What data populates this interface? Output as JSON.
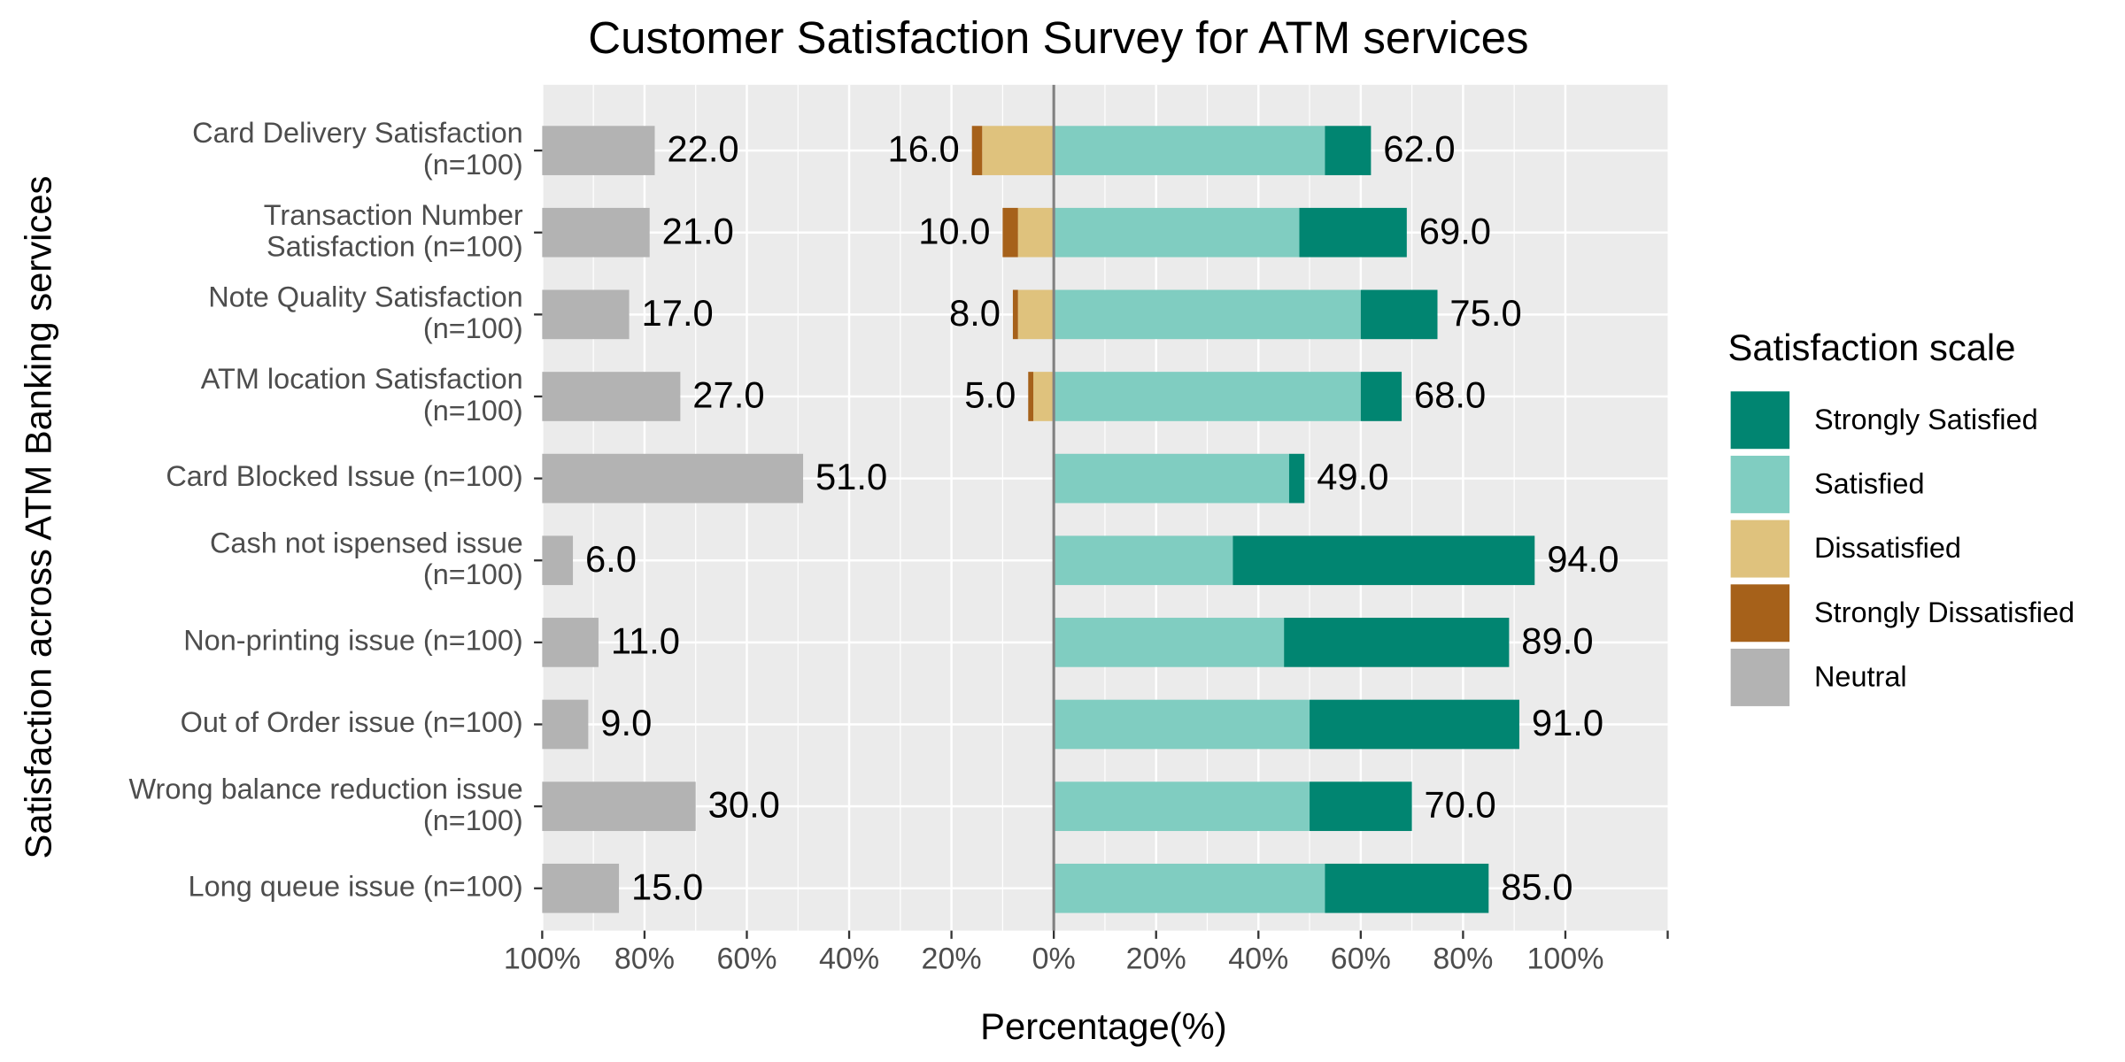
{
  "chart_data": {
    "type": "diverging_bar",
    "title": "Customer Satisfaction Survey for ATM services",
    "x_label": "Percentage(%)",
    "y_label": "Satisfaction across ATM Banking services",
    "legend_title": "Satisfaction scale",
    "categories": [
      "Card Delivery Satisfaction\n(n=100)",
      "Transaction Number\nSatisfaction (n=100)",
      "Note Quality Satisfaction\n(n=100)",
      "ATM location Satisfaction\n(n=100)",
      "Card Blocked Issue (n=100)",
      "Cash not ispensed issue\n(n=100)",
      "Non-printing issue (n=100)",
      "Out of Order issue (n=100)",
      "Wrong balance reduction issue\n(n=100)",
      "Long queue issue (n=100)"
    ],
    "series": [
      {
        "name": "Strongly Satisfied",
        "color": "#018571",
        "values": [
          9,
          21,
          15,
          8,
          3,
          59,
          44,
          41,
          20,
          32
        ]
      },
      {
        "name": "Satisfied",
        "color": "#80cdc1",
        "values": [
          53,
          48,
          60,
          60,
          46,
          35,
          45,
          50,
          50,
          53
        ]
      },
      {
        "name": "Dissatisfied",
        "color": "#dfc27d",
        "values": [
          14,
          7,
          7,
          4,
          0,
          0,
          0,
          0,
          0,
          0
        ]
      },
      {
        "name": "Strongly Dissatisfied",
        "color": "#a6611a",
        "values": [
          2,
          3,
          1,
          1,
          0,
          0,
          0,
          0,
          0,
          0
        ]
      },
      {
        "name": "Neutral",
        "color": "#b3b3b3",
        "values": [
          22,
          21,
          17,
          27,
          51,
          6,
          11,
          9,
          30,
          15
        ],
        "value_labels": [
          "22.0",
          "21.0",
          "17.0",
          "27.0",
          "51.0",
          "6.0",
          "11.0",
          "9.0",
          "30.0",
          "15.0"
        ]
      }
    ],
    "positive_totals": {
      "values": [
        62,
        69,
        75,
        68,
        49,
        94,
        89,
        91,
        70,
        85
      ],
      "value_labels": [
        "62.0",
        "69.0",
        "75.0",
        "68.0",
        "49.0",
        "94.0",
        "89.0",
        "91.0",
        "70.0",
        "85.0"
      ]
    },
    "negative_totals": {
      "values": [
        16,
        10,
        8,
        5,
        null,
        null,
        null,
        null,
        null,
        null
      ],
      "value_labels": [
        "16.0",
        "10.0",
        "8.0",
        "5.0",
        null,
        null,
        null,
        null,
        null,
        null
      ]
    },
    "xlim": [
      -100,
      120
    ],
    "xticks": [
      {
        "value": -100,
        "label": "100%"
      },
      {
        "value": -80,
        "label": "80%"
      },
      {
        "value": -60,
        "label": "60%"
      },
      {
        "value": -40,
        "label": "40%"
      },
      {
        "value": -20,
        "label": "20%"
      },
      {
        "value": 0,
        "label": "0%"
      },
      {
        "value": 20,
        "label": "20%"
      },
      {
        "value": 40,
        "label": "40%"
      },
      {
        "value": 60,
        "label": "60%"
      },
      {
        "value": 80,
        "label": "80%"
      },
      {
        "value": 100,
        "label": "100%"
      }
    ],
    "grid": true
  }
}
